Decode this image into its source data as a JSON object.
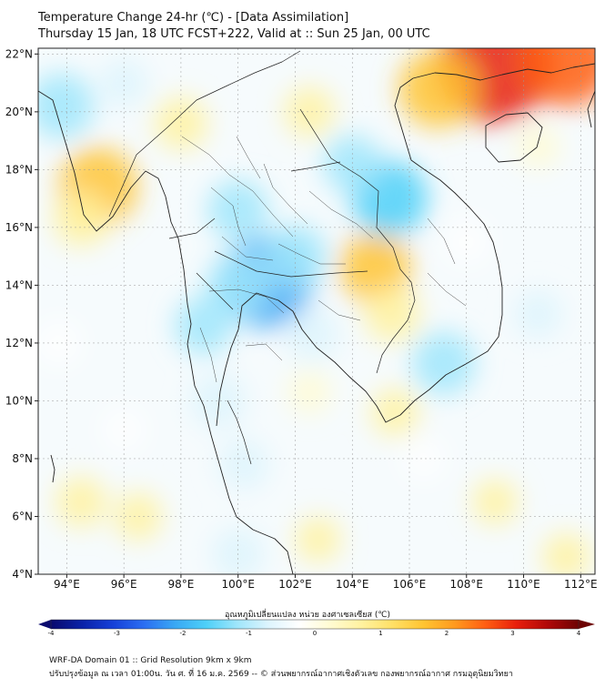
{
  "header": {
    "title": "Temperature Change 24-hr (℃) - [Data Assimilation]",
    "subtitle": "Thursday 15 Jan, 18 UTC FCST+222, Valid at :: Sun 25 Jan, 00 UTC"
  },
  "map": {
    "lon_range": [
      93,
      112.5
    ],
    "lat_range": [
      4,
      22.2
    ],
    "lon_ticks": [
      "94°E",
      "96°E",
      "98°E",
      "100°E",
      "102°E",
      "104°E",
      "106°E",
      "108°E",
      "110°E",
      "112°E"
    ],
    "lat_ticks": [
      "22°N",
      "20°N",
      "18°N",
      "16°N",
      "14°N",
      "12°N",
      "10°N",
      "8°N",
      "6°N",
      "4°N"
    ],
    "grid": true,
    "anomalies": [
      {
        "lon": 109.0,
        "lat": 21.6,
        "value": 3.2
      },
      {
        "lon": 111.5,
        "lat": 21.8,
        "value": 2.4
      },
      {
        "lon": 107.0,
        "lat": 20.8,
        "value": 1.8
      },
      {
        "lon": 95.1,
        "lat": 17.4,
        "value": 1.8
      },
      {
        "lon": 94.5,
        "lat": 16.3,
        "value": 0.9
      },
      {
        "lon": 104.8,
        "lat": 14.6,
        "value": 1.5
      },
      {
        "lon": 105.4,
        "lat": 13.0,
        "value": 0.9
      },
      {
        "lon": 98.0,
        "lat": 19.6,
        "value": 0.8
      },
      {
        "lon": 102.5,
        "lat": 20.0,
        "value": 0.7
      },
      {
        "lon": 105.5,
        "lat": 9.6,
        "value": 0.6
      },
      {
        "lon": 110.5,
        "lat": 18.8,
        "value": 0.4
      },
      {
        "lon": 94.5,
        "lat": 6.5,
        "value": 0.7
      },
      {
        "lon": 96.5,
        "lat": 6.0,
        "value": 0.6
      },
      {
        "lon": 102.8,
        "lat": 5.2,
        "value": 0.5
      },
      {
        "lon": 109.0,
        "lat": 6.5,
        "value": 0.5
      },
      {
        "lon": 111.5,
        "lat": 4.6,
        "value": 0.6
      },
      {
        "lon": 102.5,
        "lat": 10.3,
        "value": 0.4
      },
      {
        "lon": 101.0,
        "lat": 14.1,
        "value": -2.3
      },
      {
        "lon": 100.0,
        "lat": 14.0,
        "value": -1.2
      },
      {
        "lon": 102.0,
        "lat": 15.0,
        "value": -1.2
      },
      {
        "lon": 100.0,
        "lat": 16.6,
        "value": -1.1
      },
      {
        "lon": 105.3,
        "lat": 17.0,
        "value": -1.7
      },
      {
        "lon": 104.0,
        "lat": 18.2,
        "value": -1.0
      },
      {
        "lon": 93.8,
        "lat": 20.2,
        "value": -1.3
      },
      {
        "lon": 96.0,
        "lat": 21.0,
        "value": -0.6
      },
      {
        "lon": 107.2,
        "lat": 11.3,
        "value": -1.2
      },
      {
        "lon": 98.8,
        "lat": 12.6,
        "value": -1.0
      },
      {
        "lon": 99.3,
        "lat": 10.0,
        "value": -0.9
      },
      {
        "lon": 100.2,
        "lat": 7.8,
        "value": -0.7
      },
      {
        "lon": 100.0,
        "lat": 4.7,
        "value": -0.8
      },
      {
        "lon": 102.6,
        "lat": 12.3,
        "value": -0.8
      },
      {
        "lon": 110.5,
        "lat": 13.0,
        "value": -0.6
      },
      {
        "lon": 93.7,
        "lat": 12.0,
        "value": -0.4
      },
      {
        "lon": 108.0,
        "lat": 15.5,
        "value": -0.4
      },
      {
        "lon": 96.0,
        "lat": 9.0,
        "value": -0.3
      },
      {
        "lon": 106.5,
        "lat": 8.0,
        "value": -0.3
      }
    ]
  },
  "colorbar": {
    "title": "อุณหภูมิเปลี่ยนแปลง หน่วย องศาเซลเซียส (℃)",
    "min": -4,
    "max": 4,
    "tick_labels": [
      "-4",
      "-3",
      "-2",
      "-1",
      "0",
      "1",
      "2",
      "3",
      "4"
    ],
    "colors": [
      "#0a0a6e",
      "#0a22a8",
      "#1640d8",
      "#2b6ef2",
      "#39a8f4",
      "#4ed0f8",
      "#9fe6fb",
      "#ddf4fd",
      "#ffffff",
      "#fffbd2",
      "#fff2a0",
      "#ffe066",
      "#ffc431",
      "#ff9a1e",
      "#ff5e12",
      "#e81f0c",
      "#b00808",
      "#6e0202"
    ]
  },
  "footer": {
    "line1": "WRF-DA Domain 01 :: Grid Resolution 9km x 9km",
    "line2": "ปรับปรุงข้อมูล ณ เวลา 01:00น. วัน ศ. ที่ 16 ม.ค. 2569 -- © ส่วนพยากรณ์อากาศเชิงตัวเลข กองพยากรณ์อากาศ กรมอุตุนิยมวิทยา"
  }
}
